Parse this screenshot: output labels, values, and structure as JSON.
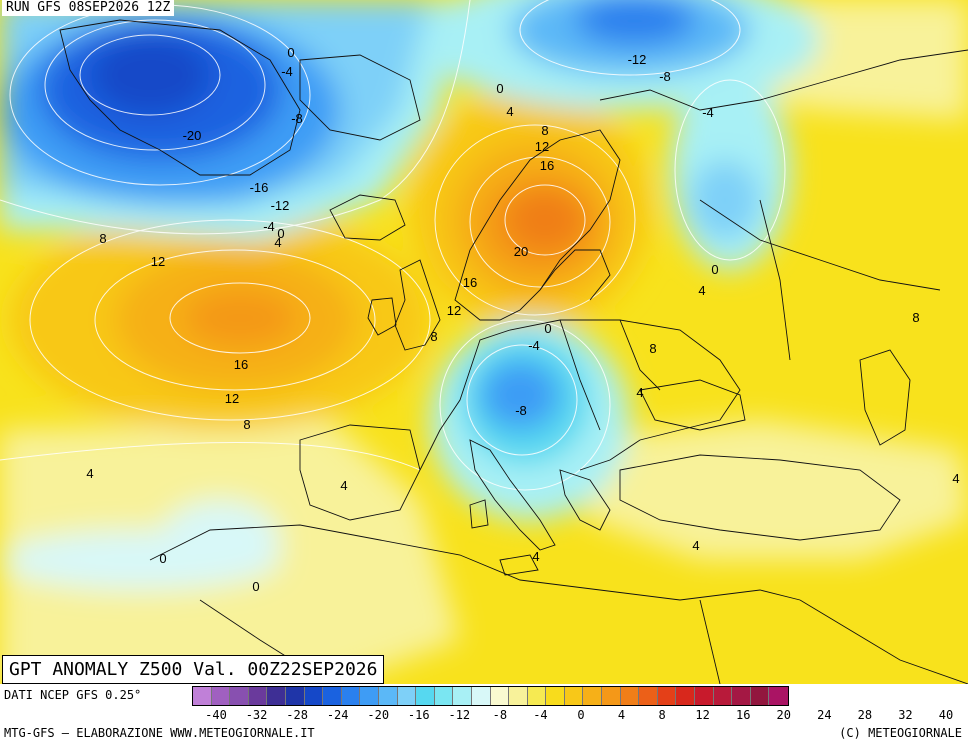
{
  "header": {
    "run_title": "RUN GFS 08SEP2026 12Z",
    "map_title": "GPT ANOMALY Z500 Val. 00Z22SEP2026"
  },
  "footer": {
    "source": "DATI NCEP GFS 0.25°",
    "credit": "MTG-GFS — ELABORAZIONE WWW.METEOGIORNALE.IT",
    "copyright": "(C) METEOGIORNALE"
  },
  "legend": {
    "colors": [
      "#c080d8",
      "#a060c0",
      "#8850b0",
      "#6a3a9c",
      "#3e2f95",
      "#1f35a8",
      "#1548c8",
      "#1a62e0",
      "#2a80ee",
      "#3e9cf5",
      "#5bb8f7",
      "#7ed0f8",
      "#56d8f0",
      "#7ae6f2",
      "#a8f0f5",
      "#d8f8f8",
      "#fafad0",
      "#f8f29a",
      "#f6ea52",
      "#f8dc1c",
      "#f8c818",
      "#f6b018",
      "#f49818",
      "#f07e18",
      "#ec6018",
      "#e44018",
      "#d8281c",
      "#c81a2c",
      "#b81a3a",
      "#a41844",
      "#92163e",
      "#aa1464"
    ],
    "ticks": [
      "-40",
      "-32",
      "-28",
      "-24",
      "-20",
      "-16",
      "-12",
      "-8",
      "-4",
      "0",
      "4",
      "8",
      "12",
      "16",
      "20",
      "24",
      "28",
      "32",
      "40"
    ]
  },
  "contour_labels": [
    "0",
    "-4",
    "-12",
    "-8",
    "0",
    "4",
    "-4",
    "8",
    "12",
    "-20",
    "-8",
    "16",
    "-16",
    "-12",
    "-4",
    "0",
    "4",
    "8",
    "12",
    "20",
    "0",
    "4",
    "16",
    "12",
    "8",
    "0",
    "-4",
    "8",
    "8",
    "16",
    "12",
    "8",
    "4",
    "-8",
    "4",
    "4",
    "4",
    "4",
    "0",
    "0",
    "4"
  ]
}
